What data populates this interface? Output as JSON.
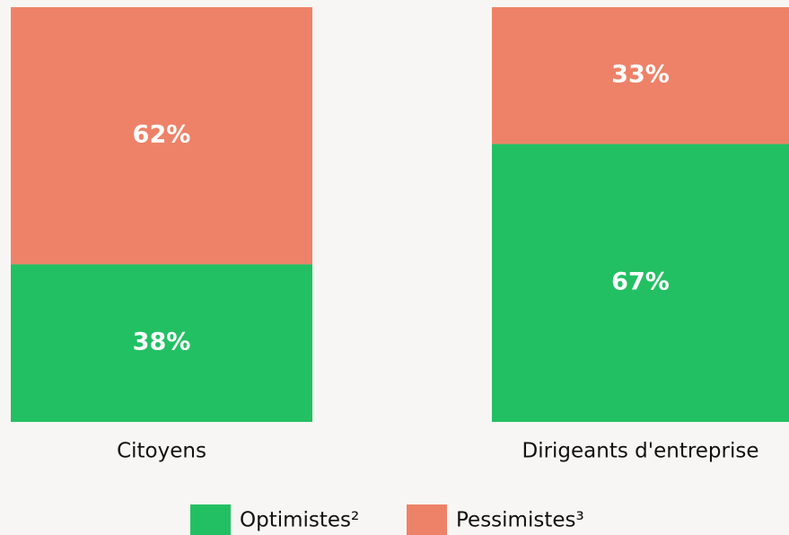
{
  "chart_data": {
    "type": "stacked_bar",
    "categories": [
      "Citoyens",
      "Dirigeants d'entreprise"
    ],
    "series": [
      {
        "name": "Optimistes²",
        "color": "#23c063",
        "values": [
          38,
          67
        ],
        "value_labels": [
          "38%",
          "67%"
        ]
      },
      {
        "name": "Pessimistes³",
        "color": "#ee8268",
        "values": [
          62,
          33
        ],
        "value_labels": [
          "62%",
          "33%"
        ]
      }
    ]
  }
}
